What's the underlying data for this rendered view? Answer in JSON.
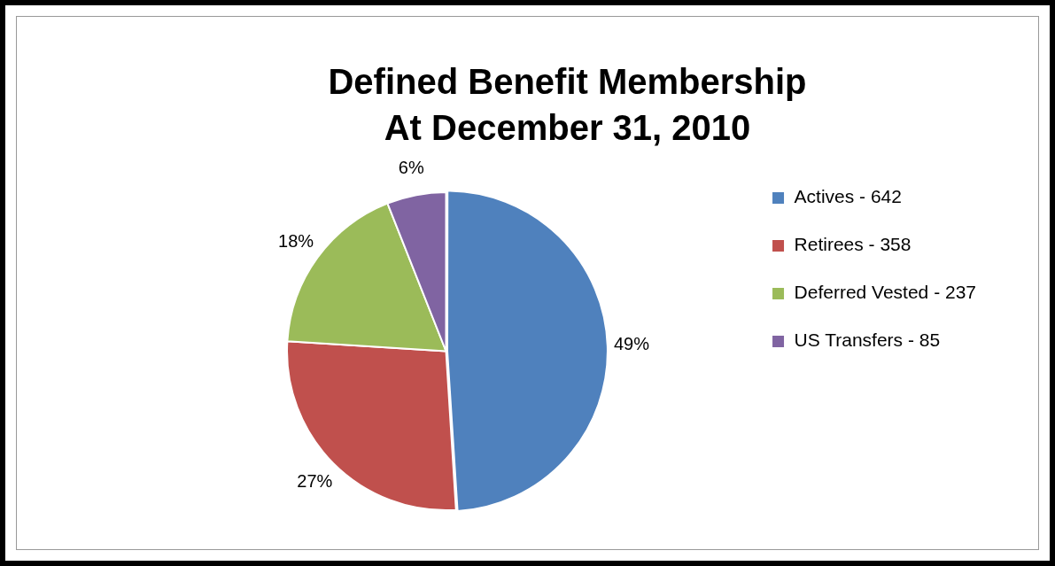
{
  "chart_data": {
    "type": "pie",
    "title": "Defined Benefit Membership\nAt December 31, 2010",
    "categories": [
      "Actives - 642",
      "Retirees - 358",
      "Deferred Vested - 237",
      "US Transfers - 85"
    ],
    "values": [
      49,
      27,
      18,
      6
    ],
    "colors": [
      "#4f81bd",
      "#c0504d",
      "#9bbb59",
      "#8064a2"
    ],
    "value_labels": [
      "49%",
      "27%",
      "18%",
      "6%"
    ],
    "legend": "right"
  }
}
